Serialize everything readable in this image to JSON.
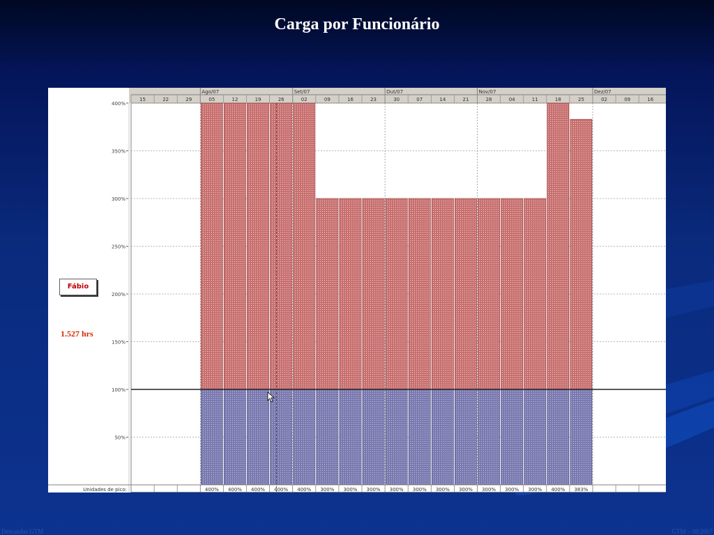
{
  "slide": {
    "title": "Carga por Funcionário",
    "footer_left": "Demandas GTM",
    "footer_right": "GTM – 08/2007"
  },
  "resource": {
    "name": "Fábio",
    "hours": "1.527 hrs"
  },
  "colors": {
    "over_capacity": "#c87070",
    "within_capacity": "#7a7ab0",
    "grid": "#9a9a9a",
    "header_bg": "#d4d0c8"
  },
  "chart_data": {
    "type": "bar",
    "months": [
      {
        "label": "Ago/07",
        "start_index": 3
      },
      {
        "label": "Set/07",
        "start_index": 7
      },
      {
        "label": "Out/07",
        "start_index": 11
      },
      {
        "label": "Nov/07",
        "start_index": 15
      },
      {
        "label": "Dez/07",
        "start_index": 20
      }
    ],
    "weeks": [
      "15",
      "22",
      "29",
      "05",
      "12",
      "19",
      "26",
      "02",
      "09",
      "16",
      "23",
      "30",
      "07",
      "14",
      "21",
      "28",
      "04",
      "11",
      "18",
      "25",
      "02",
      "09",
      "16"
    ],
    "values": [
      null,
      null,
      null,
      400,
      400,
      400,
      400,
      400,
      300,
      300,
      300,
      300,
      300,
      300,
      300,
      300,
      300,
      300,
      400,
      383,
      null,
      null,
      null
    ],
    "peak_labels": [
      "",
      "",
      "",
      "400%",
      "400%",
      "400%",
      "400%",
      "400%",
      "300%",
      "300%",
      "300%",
      "300%",
      "300%",
      "300%",
      "300%",
      "300%",
      "300%",
      "300%",
      "400%",
      "383%",
      "",
      "",
      ""
    ],
    "row_label": "Unidades de pico:",
    "capacity": 100,
    "ylim": [
      0,
      400
    ],
    "yticks": [
      {
        "value": 50,
        "label": "50%"
      },
      {
        "value": 100,
        "label": "100%"
      },
      {
        "value": 150,
        "label": "150%"
      },
      {
        "value": 200,
        "label": "200%"
      },
      {
        "value": 250,
        "label": "250%"
      },
      {
        "value": 300,
        "label": "300%"
      },
      {
        "value": 350,
        "label": "350%"
      },
      {
        "value": 400,
        "label": "400%"
      }
    ]
  }
}
